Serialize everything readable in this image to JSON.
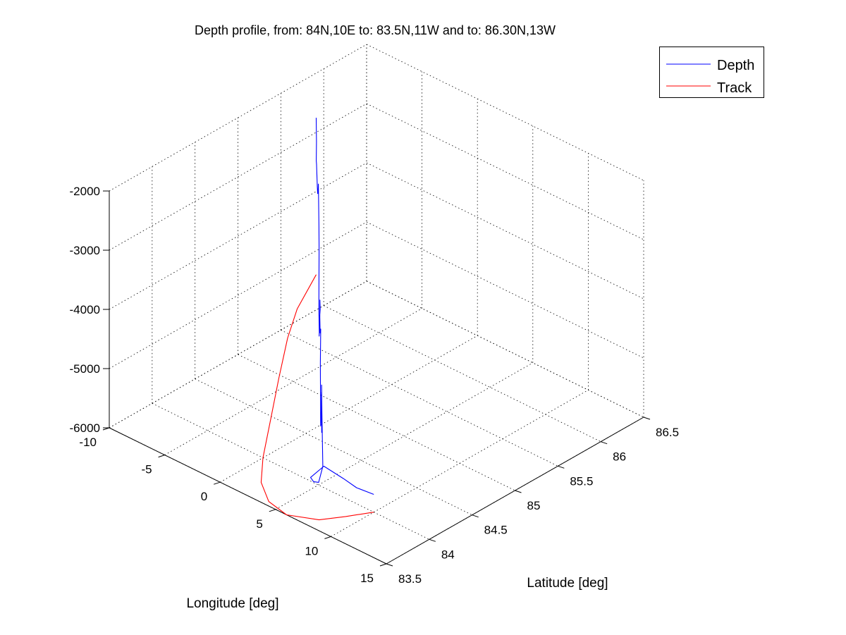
{
  "chart_data": {
    "type": "line",
    "title": "Depth profile, from: 84N,10E to: 83.5N,11W and to: 86.30N,13W",
    "xlabel": "Longitude [deg]",
    "ylabel": "Latitude [deg]",
    "zlabel": "",
    "xlim": [
      -10,
      15
    ],
    "ylim": [
      83.5,
      86.5
    ],
    "zlim": [
      -6000,
      -2000
    ],
    "x_ticks": [
      "-10",
      "-5",
      "0",
      "5",
      "10",
      "15"
    ],
    "y_ticks": [
      "83.5",
      "84",
      "84.5",
      "85",
      "85.5",
      "86",
      "86.5"
    ],
    "z_ticks": [
      "-2000",
      "-3000",
      "-4000",
      "-5000",
      "-6000"
    ],
    "grid": true,
    "legend_position": "top-right",
    "series": [
      {
        "name": "Depth",
        "color": "#0000ff",
        "lon": [
          -13,
          -12.2,
          -11.6,
          -10.8,
          -9.8,
          -9,
          -7.8,
          -7,
          -5.4,
          -5,
          -4.4,
          -3.9,
          -3.6,
          -3,
          -2.6,
          -1.8,
          -1.3,
          -0.8,
          -0.6,
          0.3,
          1.1,
          1.4,
          1.8,
          2.2,
          2.6,
          3.2,
          4,
          5.4,
          5.8,
          6.5,
          7,
          8.2,
          9.2,
          9.6,
          10
        ],
        "lat": [
          86.3,
          86.2,
          86.12,
          86.02,
          85.9,
          85.8,
          85.65,
          85.55,
          85.35,
          85.3,
          85.22,
          85.16,
          85.12,
          85.05,
          85,
          84.9,
          84.83,
          84.77,
          84.75,
          84.63,
          84.53,
          84.5,
          84.45,
          84.4,
          84.35,
          84.27,
          84.17,
          84,
          83.9,
          83.75,
          83.65,
          83.65,
          83.75,
          83.85,
          84
        ],
        "depth": [
          -3350,
          -3600,
          -3800,
          -3700,
          -3900,
          -3850,
          -3600,
          -3300,
          -3700,
          -4000,
          -4900,
          -5200,
          -5200,
          -4900,
          -4400,
          -4400,
          -4400,
          -4600,
          -4500,
          -4900,
          -5800,
          -5500,
          -5100,
          -5700,
          -5400,
          -4700,
          -5000,
          -5650,
          -5800,
          -5600,
          -5400,
          -5100,
          -5300,
          -5500,
          -5700
        ]
      },
      {
        "name": "Track",
        "color": "#ff0000",
        "lon": [
          10,
          9,
          8,
          6,
          4,
          2,
          0,
          -3,
          -6,
          -9,
          -11,
          -13
        ],
        "lat": [
          84,
          83.8,
          83.62,
          83.5,
          83.55,
          83.72,
          84,
          84.48,
          84.96,
          85.45,
          85.82,
          86.3
        ],
        "depth": [
          -6000,
          -6000,
          -6000,
          -6000,
          -6000,
          -6000,
          -6000,
          -6000,
          -6000,
          -6000,
          -6000,
          -6000
        ]
      }
    ]
  }
}
